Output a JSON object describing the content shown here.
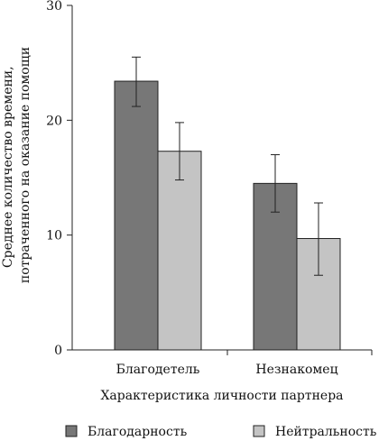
{
  "chart_data": {
    "type": "bar",
    "categories": [
      "Благодетель",
      "Незнакомец"
    ],
    "series": [
      {
        "name": "Благодарность",
        "values": [
          23.4,
          14.5
        ],
        "error_low": [
          21.2,
          12.0
        ],
        "error_high": [
          25.5,
          17.0
        ],
        "color": "#777777"
      },
      {
        "name": "Нейтральность",
        "values": [
          17.3,
          9.7
        ],
        "error_low": [
          14.8,
          6.5
        ],
        "error_high": [
          19.8,
          12.8
        ],
        "color": "#c4c4c4"
      }
    ],
    "xlabel": "Характеристика личности партнера",
    "ylabel": [
      "Среднее количество времени,",
      "потраченного на оказание помощи"
    ],
    "ylim": [
      0,
      30
    ],
    "yticks": [
      "0",
      "10",
      "20",
      "30"
    ],
    "grid": false,
    "legend": "bottom"
  }
}
